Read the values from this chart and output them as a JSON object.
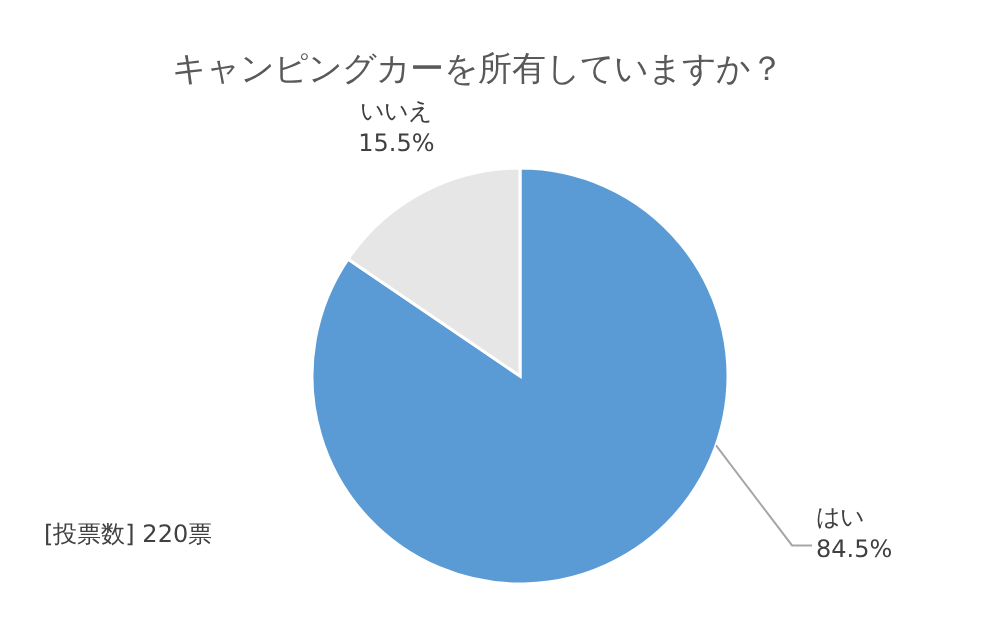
{
  "chart_data": {
    "type": "pie",
    "title": "キャンピングカーを所有していますか？",
    "categories": [
      "はい",
      "いいえ"
    ],
    "values": [
      84.5,
      15.5
    ],
    "value_labels": [
      "84.5%",
      "15.5%"
    ],
    "colors": [
      "#5b9bd5",
      "#e7e6e6"
    ],
    "annotations": [
      "[投票数] 220票"
    ],
    "legend": false
  }
}
